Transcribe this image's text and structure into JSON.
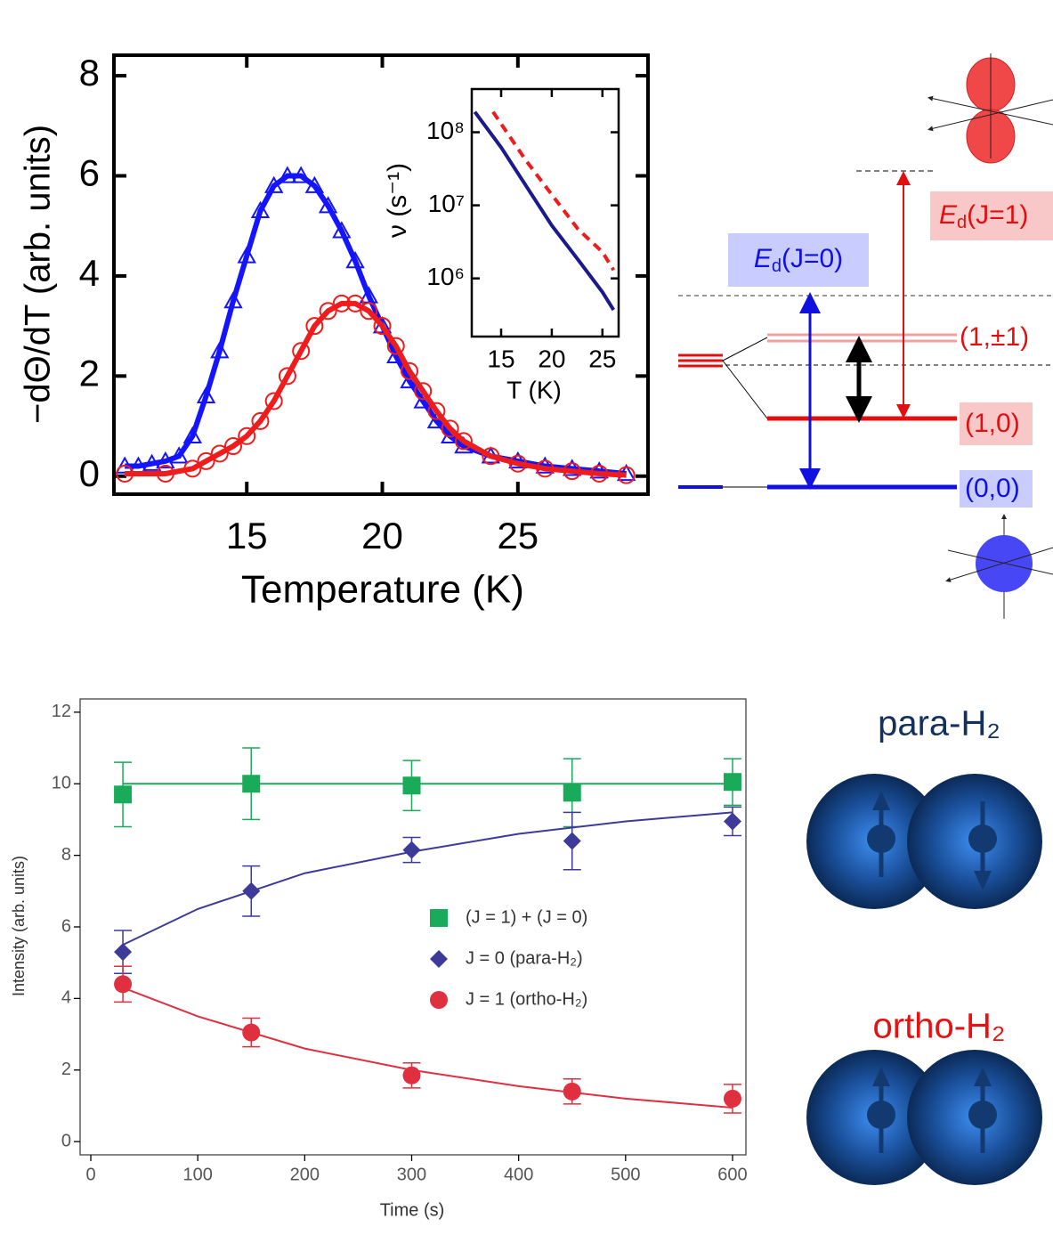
{
  "chart_data": [
    {
      "type": "scatter",
      "xlabel": "Temperature (K)",
      "ylabel": "−dΘ/dT (arb. units)",
      "xlim": [
        10.1,
        29.8
      ],
      "ylim": [
        -0.36,
        8.41
      ],
      "xticks": [
        15,
        20,
        25
      ],
      "yticks": [
        0,
        2,
        4,
        6,
        8
      ],
      "series": [
        {
          "color": "#1414ff",
          "marker": "triangle",
          "x": [
            10.5,
            11,
            11.5,
            12,
            12.5,
            13,
            13.5,
            14,
            14.5,
            15,
            15.5,
            16,
            16.5,
            17,
            17.5,
            18,
            18.5,
            19,
            19.5,
            20,
            20.5,
            21,
            21.5,
            22,
            22.5,
            23,
            24,
            25,
            26,
            27,
            28,
            29
          ],
          "values": [
            0.2,
            0.2,
            0.25,
            0.3,
            0.4,
            0.8,
            1.6,
            2.5,
            3.5,
            4.4,
            5.3,
            5.8,
            6.0,
            6.0,
            5.8,
            5.4,
            4.9,
            4.3,
            3.6,
            3.0,
            2.4,
            1.9,
            1.5,
            1.1,
            0.8,
            0.6,
            0.4,
            0.3,
            0.2,
            0.15,
            0.1,
            0.05
          ]
        },
        {
          "color": "#ee1c1c",
          "marker": "circle",
          "x": [
            10.5,
            12,
            13,
            13.5,
            14,
            14.5,
            15,
            15.5,
            16,
            16.5,
            17,
            17.5,
            18,
            18.5,
            19,
            19.5,
            20,
            20.5,
            21,
            21.5,
            22,
            22.5,
            23,
            24,
            25,
            26,
            27,
            28,
            29
          ],
          "values": [
            0.05,
            0.05,
            0.15,
            0.3,
            0.45,
            0.6,
            0.8,
            1.1,
            1.5,
            2.0,
            2.5,
            3.0,
            3.3,
            3.45,
            3.45,
            3.3,
            3.0,
            2.6,
            2.1,
            1.7,
            1.3,
            0.95,
            0.7,
            0.4,
            0.25,
            0.15,
            0.1,
            0.05,
            0.02
          ]
        }
      ]
    },
    {
      "type": "line",
      "xlabel": "T (K)",
      "ylabel": "ν (s⁻¹)",
      "ylog": true,
      "xlim": [
        12.1,
        26.6
      ],
      "ylim": [
        160000,
        390000000
      ],
      "xticks": [
        15,
        20,
        25
      ],
      "yticks": [
        {
          "value": 1000000,
          "label": "10⁶"
        },
        {
          "value": 10000000,
          "label": "10⁷"
        },
        {
          "value": 100000000,
          "label": "10⁸"
        }
      ],
      "series": [
        {
          "color": "#1a1a8c",
          "dash": false,
          "x": [
            12.4,
            15,
            17.4,
            20,
            22.6,
            25,
            26.1
          ],
          "values": [
            190000000,
            62000000,
            19000000,
            5300000,
            1800000,
            650000,
            370000
          ]
        },
        {
          "color": "#ee1c1c",
          "dash": true,
          "x": [
            14.2,
            15,
            17.4,
            20,
            22.6,
            25,
            26.1
          ],
          "values": [
            190000000,
            130000000,
            42000000,
            14000000,
            4700000,
            2300000,
            1300000
          ]
        }
      ]
    },
    {
      "type": "scatter",
      "xlabel": "Time (s)",
      "ylabel": "Intensity (arb. units)",
      "xlim": [
        -10,
        612.5
      ],
      "ylim": [
        -0.37,
        12.37
      ],
      "xticks": [
        0,
        100,
        200,
        300,
        400,
        500,
        600
      ],
      "yticks": [
        0,
        2,
        4,
        6,
        8,
        10,
        12
      ],
      "legend": "center-right",
      "fit_x": [
        30,
        100,
        200,
        300,
        400,
        500,
        600
      ],
      "series": [
        {
          "name": "(J = 1) + (J = 0)",
          "color": "#1aab5a",
          "marker": "square",
          "x": [
            30,
            150,
            300,
            450,
            600
          ],
          "values": [
            9.7,
            10.0,
            9.95,
            9.75,
            10.05
          ],
          "errors": [
            0.9,
            1.0,
            0.7,
            0.95,
            0.65
          ],
          "fit": [
            10,
            10,
            10,
            10,
            10,
            10,
            10
          ]
        },
        {
          "name": "J = 0 (para-H₂)",
          "color": "#3d3a99",
          "marker": "diamond",
          "x": [
            30,
            150,
            300,
            450,
            600
          ],
          "values": [
            5.3,
            7.0,
            8.15,
            8.4,
            8.95
          ],
          "errors": [
            0.6,
            0.7,
            0.35,
            0.8,
            0.4
          ],
          "fit": [
            5.5,
            6.5,
            7.5,
            8.1,
            8.6,
            8.95,
            9.2
          ]
        },
        {
          "name": "J = 1 (ortho-H₂)",
          "color": "#e0303f",
          "marker": "circle",
          "x": [
            30,
            150,
            300,
            450,
            600
          ],
          "values": [
            4.4,
            3.05,
            1.85,
            1.4,
            1.2
          ],
          "errors": [
            0.5,
            0.4,
            0.35,
            0.35,
            0.4
          ],
          "fit": [
            4.3,
            3.5,
            2.6,
            2.0,
            1.55,
            1.2,
            0.95
          ]
        }
      ]
    }
  ],
  "diagram": {
    "ed_j1": {
      "symbol": "E",
      "sub": "d",
      "arg": "(J=1)"
    },
    "ed_j0": {
      "symbol": "E",
      "sub": "d",
      "arg": "(J=0)"
    },
    "levels": [
      "(1,±1)",
      "(1,0)",
      "(0,0)"
    ]
  },
  "molecules": {
    "para": "para-H₂",
    "ortho": "ortho-H₂"
  }
}
